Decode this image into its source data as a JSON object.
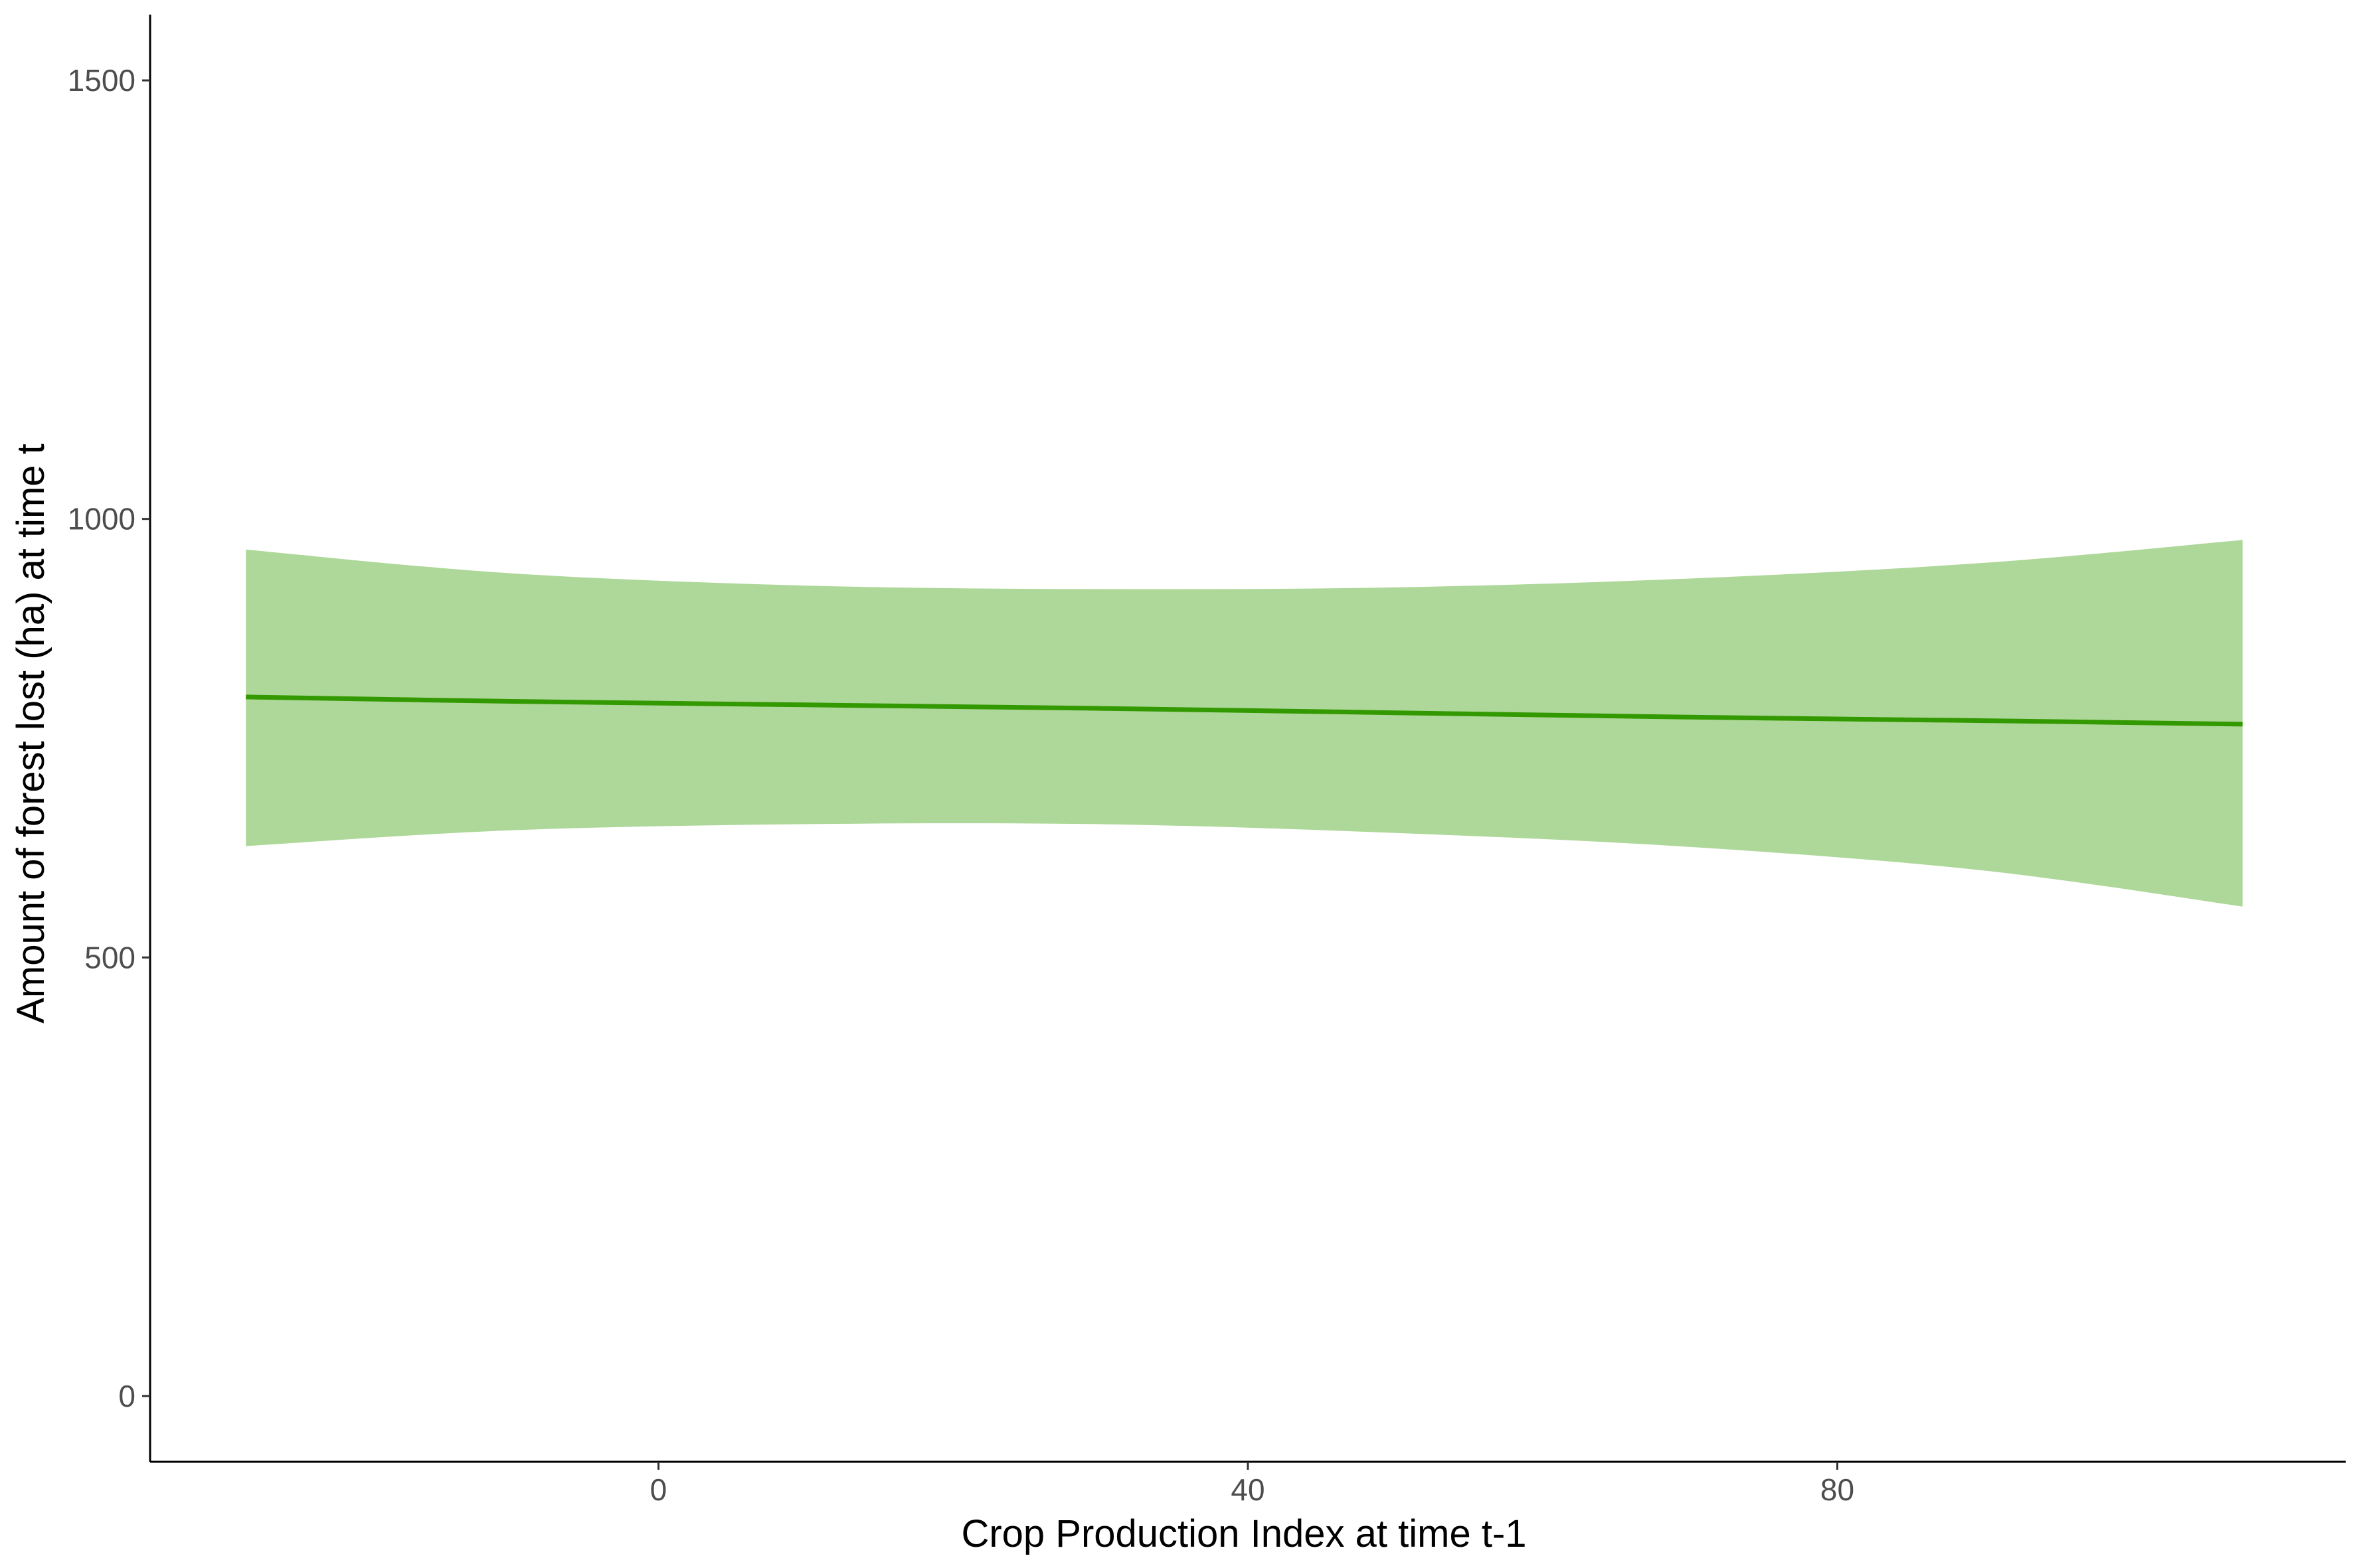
{
  "chart_data": {
    "type": "line",
    "title": "",
    "xlabel": "Crop Production Index at time t-1",
    "ylabel": "Amount of forest lost (ha) at time t",
    "xlim": [
      -34.5,
      114.5
    ],
    "ylim": [
      -75,
      1575
    ],
    "x_ticks": [
      0,
      40,
      80
    ],
    "y_ticks": [
      0,
      500,
      1000,
      1500
    ],
    "grid": false,
    "legend": "none",
    "colors": {
      "line": "#339900",
      "ribbon": "#aed899",
      "axis": "#000000"
    },
    "series": [
      {
        "x": [
          -28,
          -10,
          10,
          30,
          50,
          70,
          90,
          107.5
        ],
        "values": [
          797,
          792,
          788,
          784,
          779,
          774,
          770,
          766
        ],
        "lower": [
          627,
          645,
          652,
          652,
          642,
          626,
          599,
          558
        ],
        "upper": [
          965,
          938,
          924,
          920,
          922,
          932,
          950,
          976
        ]
      }
    ]
  }
}
